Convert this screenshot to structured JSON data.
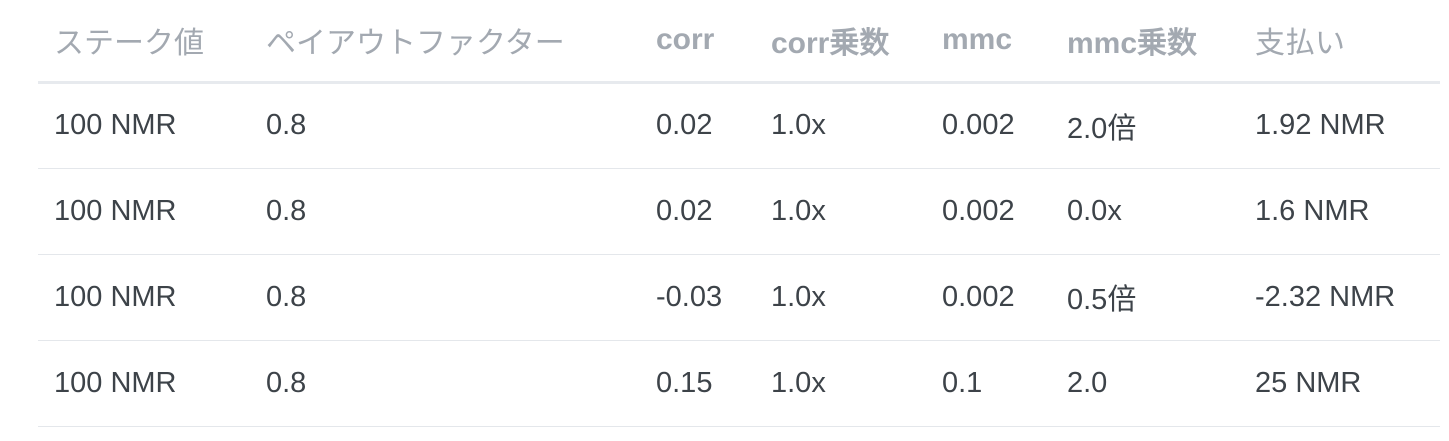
{
  "table": {
    "headers": [
      "ステーク値",
      "ペイアウトファクター",
      "corr",
      "corr乗数",
      "mmc",
      "mmc乗数",
      "支払い"
    ],
    "rows": [
      [
        "100 NMR",
        "0.8",
        "0.02",
        "1.0x",
        "0.002",
        "2.0倍",
        "1.92 NMR"
      ],
      [
        "100 NMR",
        "0.8",
        "0.02",
        "1.0x",
        "0.002",
        "0.0x",
        "1.6 NMR"
      ],
      [
        "100 NMR",
        "0.8",
        "-0.03",
        "1.0x",
        "0.002",
        "0.5倍",
        "-2.32 NMR"
      ],
      [
        "100 NMR",
        "0.8",
        "0.15",
        "1.0x",
        "0.1",
        "2.0",
        "25 NMR"
      ]
    ]
  }
}
